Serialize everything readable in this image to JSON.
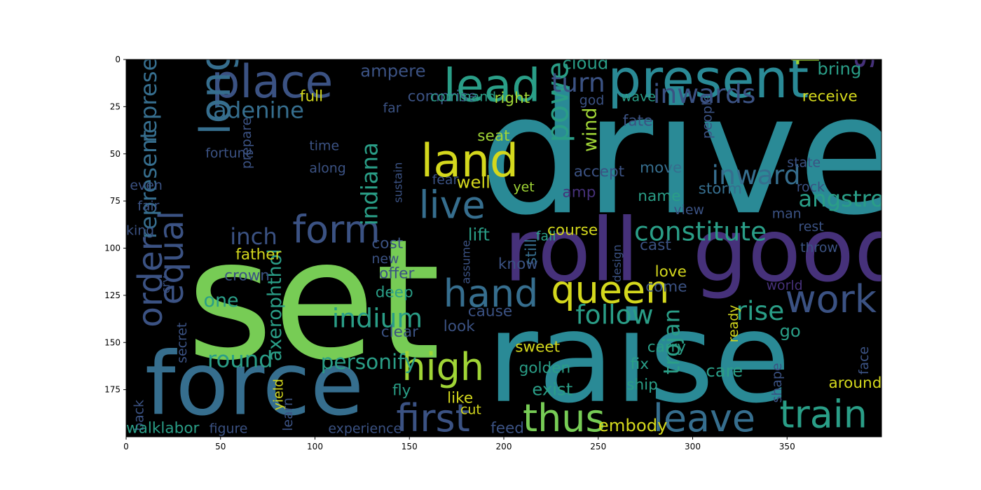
{
  "chart_data": {
    "type": "wordcloud",
    "title": "",
    "xlabel": "",
    "ylabel": "",
    "xlim": [
      0,
      400
    ],
    "ylim": [
      200,
      0
    ],
    "x_ticks": [
      0,
      50,
      100,
      150,
      200,
      250,
      300,
      350
    ],
    "y_ticks": [
      0,
      25,
      50,
      75,
      100,
      125,
      150,
      175
    ],
    "background": "#000000",
    "words": [
      {
        "text": "drive",
        "x": 187,
        "y": 81,
        "size": 88,
        "color": "#2a8a96",
        "rotate": 0
      },
      {
        "text": "set",
        "x": 32,
        "y": 158,
        "size": 88,
        "color": "#77cc55",
        "rotate": 0
      },
      {
        "text": "raise",
        "x": 191,
        "y": 181,
        "size": 66,
        "color": "#2a8a96",
        "rotate": 0
      },
      {
        "text": "roll",
        "x": 200,
        "y": 117,
        "size": 46,
        "color": "#46317a",
        "rotate": 0
      },
      {
        "text": "good",
        "x": 300,
        "y": 117,
        "size": 46,
        "color": "#46317a",
        "rotate": 0
      },
      {
        "text": "force",
        "x": 10,
        "y": 188,
        "size": 46,
        "color": "#366e8e",
        "rotate": 0
      },
      {
        "text": "pass",
        "x": 54,
        "y": 3,
        "size": 42,
        "color": "#46317a",
        "rotate": 90
      },
      {
        "text": "present",
        "x": 255,
        "y": 20,
        "size": 28,
        "color": "#2a8a96",
        "rotate": 0
      },
      {
        "text": "place",
        "x": 45,
        "y": 20,
        "size": 24,
        "color": "#3b5283",
        "rotate": 0
      },
      {
        "text": "lead",
        "x": 168,
        "y": 22,
        "size": 24,
        "color": "#2a9e87",
        "rotate": 0
      },
      {
        "text": "land",
        "x": 156,
        "y": 62,
        "size": 24,
        "color": "#d4d81d",
        "rotate": 0
      },
      {
        "text": "long",
        "x": 55,
        "y": 40,
        "size": 22,
        "color": "#366e8e",
        "rotate": 90
      },
      {
        "text": "fire",
        "x": 367,
        "y": 3,
        "size": 22,
        "color": "#a0d536",
        "rotate": 90
      },
      {
        "text": "stand",
        "x": 396,
        "y": 5,
        "size": 18,
        "color": "#46317a",
        "rotate": 90
      },
      {
        "text": "live",
        "x": 155,
        "y": 84,
        "size": 20,
        "color": "#366e8e",
        "rotate": 0
      },
      {
        "text": "form",
        "x": 88,
        "y": 97,
        "size": 20,
        "color": "#3b5283",
        "rotate": 0
      },
      {
        "text": "power",
        "x": 234,
        "y": 44,
        "size": 16,
        "color": "#2a9e87",
        "rotate": 90
      },
      {
        "text": "queen",
        "x": 225,
        "y": 129,
        "size": 20,
        "color": "#d4d81d",
        "rotate": 0
      },
      {
        "text": "hand",
        "x": 168,
        "y": 131,
        "size": 20,
        "color": "#366e8e",
        "rotate": 0
      },
      {
        "text": "work",
        "x": 349,
        "y": 134,
        "size": 20,
        "color": "#3b5283",
        "rotate": 0
      },
      {
        "text": "high",
        "x": 146,
        "y": 170,
        "size": 20,
        "color": "#a0d536",
        "rotate": 0
      },
      {
        "text": "first",
        "x": 143,
        "y": 197,
        "size": 20,
        "color": "#3b5283",
        "rotate": 0
      },
      {
        "text": "thus",
        "x": 210,
        "y": 197,
        "size": 20,
        "color": "#77cc55",
        "rotate": 0
      },
      {
        "text": "leave",
        "x": 279,
        "y": 197,
        "size": 20,
        "color": "#366e8e",
        "rotate": 0
      },
      {
        "text": "train",
        "x": 346,
        "y": 195,
        "size": 20,
        "color": "#2a9e87",
        "rotate": 0
      },
      {
        "text": "order",
        "x": 19,
        "y": 142,
        "size": 18,
        "color": "#3b5283",
        "rotate": 90
      },
      {
        "text": "equal",
        "x": 30,
        "y": 130,
        "size": 18,
        "color": "#3b5283",
        "rotate": 90
      },
      {
        "text": "inch",
        "x": 55,
        "y": 98,
        "size": 12,
        "color": "#3b5283",
        "rotate": 0
      },
      {
        "text": "represent",
        "x": 16,
        "y": 95,
        "size": 12,
        "color": "#366e8e",
        "rotate": 90
      },
      {
        "text": "represent",
        "x": 16,
        "y": 44,
        "size": 12,
        "color": "#366e8e",
        "rotate": 90
      },
      {
        "text": "adenine",
        "x": 46,
        "y": 31,
        "size": 12,
        "color": "#366e8e",
        "rotate": 0
      },
      {
        "text": "turn",
        "x": 225,
        "y": 17,
        "size": 14,
        "color": "#3b5283",
        "rotate": 0
      },
      {
        "text": "inwards",
        "x": 279,
        "y": 23,
        "size": 14,
        "color": "#3b5283",
        "rotate": 0
      },
      {
        "text": "inward",
        "x": 310,
        "y": 66,
        "size": 14,
        "color": "#366e8e",
        "rotate": 0
      },
      {
        "text": "angstrom",
        "x": 356,
        "y": 78,
        "size": 12,
        "color": "#2a9e87",
        "rotate": 0
      },
      {
        "text": "constitute",
        "x": 269,
        "y": 96,
        "size": 14,
        "color": "#2a9e87",
        "rotate": 0
      },
      {
        "text": "indiana",
        "x": 133,
        "y": 88,
        "size": 12,
        "color": "#2a9e87",
        "rotate": 90
      },
      {
        "text": "indium",
        "x": 109,
        "y": 142,
        "size": 14,
        "color": "#2a9e87",
        "rotate": 0
      },
      {
        "text": "follow",
        "x": 238,
        "y": 140,
        "size": 14,
        "color": "#2a9e87",
        "rotate": 0
      },
      {
        "text": "rise",
        "x": 323,
        "y": 138,
        "size": 14,
        "color": "#2a9e87",
        "rotate": 0
      },
      {
        "text": "axerophthol",
        "x": 82,
        "y": 160,
        "size": 10,
        "color": "#2a9e87",
        "rotate": 90
      },
      {
        "text": "round",
        "x": 43,
        "y": 163,
        "size": 12,
        "color": "#2a9e87",
        "rotate": 0
      },
      {
        "text": "personify",
        "x": 103,
        "y": 164,
        "size": 11,
        "color": "#2a9e87",
        "rotate": 0
      },
      {
        "text": "trojan",
        "x": 293,
        "y": 167,
        "size": 12,
        "color": "#2a9e87",
        "rotate": 90
      },
      {
        "text": "wind",
        "x": 249,
        "y": 49,
        "size": 10,
        "color": "#a0d536",
        "rotate": 90
      },
      {
        "text": "well",
        "x": 175,
        "y": 68,
        "size": 9,
        "color": "#d4d81d",
        "rotate": 0
      },
      {
        "text": "ampere",
        "x": 124,
        "y": 9,
        "size": 9,
        "color": "#3b5283",
        "rotate": 0
      },
      {
        "text": "cloud",
        "x": 231,
        "y": 5,
        "size": 9,
        "color": "#2a9e87",
        "rotate": 0
      },
      {
        "text": "bring",
        "x": 366,
        "y": 8,
        "size": 9,
        "color": "#2a9e87",
        "rotate": 0
      },
      {
        "text": "receive",
        "x": 358,
        "y": 22,
        "size": 8,
        "color": "#d4d81d",
        "rotate": 0
      },
      {
        "text": "comprise",
        "x": 149,
        "y": 22,
        "size": 8,
        "color": "#3b5283",
        "rotate": 0
      },
      {
        "text": "right",
        "x": 195,
        "y": 23,
        "size": 8,
        "color": "#a0d536",
        "rotate": 0
      },
      {
        "text": "command",
        "x": 161,
        "y": 22,
        "size": 7,
        "color": "#2a9e87",
        "rotate": 0
      },
      {
        "text": "god",
        "x": 240,
        "y": 24,
        "size": 7,
        "color": "#3b5283",
        "rotate": 0
      },
      {
        "text": "wave",
        "x": 262,
        "y": 22,
        "size": 7,
        "color": "#2a9e87",
        "rotate": 0
      },
      {
        "text": "full",
        "x": 92,
        "y": 22,
        "size": 8,
        "color": "#d4d81d",
        "rotate": 0
      },
      {
        "text": "far",
        "x": 136,
        "y": 28,
        "size": 7,
        "color": "#3b5283",
        "rotate": 0
      },
      {
        "text": "seat",
        "x": 186,
        "y": 43,
        "size": 8,
        "color": "#a0d536",
        "rotate": 0
      },
      {
        "text": "fate",
        "x": 263,
        "y": 35,
        "size": 8,
        "color": "#3b5283",
        "rotate": 0
      },
      {
        "text": "people",
        "x": 310,
        "y": 42,
        "size": 7,
        "color": "#3b5283",
        "rotate": 90
      },
      {
        "text": "accept",
        "x": 237,
        "y": 62,
        "size": 8,
        "color": "#3b5283",
        "rotate": 0
      },
      {
        "text": "move",
        "x": 272,
        "y": 60,
        "size": 8,
        "color": "#366e8e",
        "rotate": 0
      },
      {
        "text": "storm",
        "x": 303,
        "y": 71,
        "size": 8,
        "color": "#366e8e",
        "rotate": 0
      },
      {
        "text": "amp",
        "x": 231,
        "y": 73,
        "size": 8,
        "color": "#46317a",
        "rotate": 0
      },
      {
        "text": "name",
        "x": 271,
        "y": 75,
        "size": 8,
        "color": "#2a9e87",
        "rotate": 0
      },
      {
        "text": "state",
        "x": 350,
        "y": 57,
        "size": 7,
        "color": "#3b5283",
        "rotate": 0
      },
      {
        "text": "rock",
        "x": 355,
        "y": 70,
        "size": 7,
        "color": "#3b5283",
        "rotate": 0
      },
      {
        "text": "view",
        "x": 290,
        "y": 82,
        "size": 7,
        "color": "#3b5283",
        "rotate": 0
      },
      {
        "text": "man",
        "x": 342,
        "y": 84,
        "size": 7,
        "color": "#3b5283",
        "rotate": 0
      },
      {
        "text": "rest",
        "x": 356,
        "y": 91,
        "size": 7,
        "color": "#3b5283",
        "rotate": 0
      },
      {
        "text": "yet",
        "x": 205,
        "y": 70,
        "size": 7,
        "color": "#a0d536",
        "rotate": 0
      },
      {
        "text": "along",
        "x": 97,
        "y": 60,
        "size": 7,
        "color": "#3b5283",
        "rotate": 0
      },
      {
        "text": "time",
        "x": 97,
        "y": 48,
        "size": 7,
        "color": "#3b5283",
        "rotate": 0
      },
      {
        "text": "fortune",
        "x": 42,
        "y": 52,
        "size": 7,
        "color": "#3b5283",
        "rotate": 0
      },
      {
        "text": "prepare",
        "x": 66,
        "y": 58,
        "size": 7,
        "color": "#3b5283",
        "rotate": 90
      },
      {
        "text": "fear",
        "x": 162,
        "y": 66,
        "size": 7,
        "color": "#3b5283",
        "rotate": 0
      },
      {
        "text": "even",
        "x": 2,
        "y": 69,
        "size": 7,
        "color": "#3b5283",
        "rotate": 0
      },
      {
        "text": "fair",
        "x": 6,
        "y": 80,
        "size": 7,
        "color": "#3b5283",
        "rotate": 0
      },
      {
        "text": "king",
        "x": 0,
        "y": 93,
        "size": 7,
        "color": "#3b5283",
        "rotate": 0
      },
      {
        "text": "father",
        "x": 58,
        "y": 106,
        "size": 8,
        "color": "#d4d81d",
        "rotate": 0
      },
      {
        "text": "lift",
        "x": 181,
        "y": 96,
        "size": 9,
        "color": "#2a9e87",
        "rotate": 0
      },
      {
        "text": "cost",
        "x": 130,
        "y": 100,
        "size": 8,
        "color": "#3b5283",
        "rotate": 0
      },
      {
        "text": "new",
        "x": 130,
        "y": 108,
        "size": 7,
        "color": "#3b5283",
        "rotate": 0
      },
      {
        "text": "fall",
        "x": 217,
        "y": 96,
        "size": 7,
        "color": "#2a9e87",
        "rotate": 0
      },
      {
        "text": "course",
        "x": 223,
        "y": 93,
        "size": 8,
        "color": "#d4d81d",
        "rotate": 0
      },
      {
        "text": "cast",
        "x": 272,
        "y": 101,
        "size": 8,
        "color": "#3b5283",
        "rotate": 0
      },
      {
        "text": "love",
        "x": 280,
        "y": 115,
        "size": 8,
        "color": "#d4d81d",
        "rotate": 0
      },
      {
        "text": "throw",
        "x": 357,
        "y": 102,
        "size": 7,
        "color": "#3b5283",
        "rotate": 0
      },
      {
        "text": "still",
        "x": 217,
        "y": 109,
        "size": 8,
        "color": "#366e8e",
        "rotate": 90
      },
      {
        "text": "know",
        "x": 197,
        "y": 111,
        "size": 8,
        "color": "#3b5283",
        "rotate": 0
      },
      {
        "text": "offer",
        "x": 134,
        "y": 116,
        "size": 8,
        "color": "#3b5283",
        "rotate": 0
      },
      {
        "text": "deep",
        "x": 132,
        "y": 126,
        "size": 8,
        "color": "#2a9e87",
        "rotate": 0
      },
      {
        "text": "come",
        "x": 275,
        "y": 123,
        "size": 8,
        "color": "#3b5283",
        "rotate": 0
      },
      {
        "text": "one",
        "x": 41,
        "y": 131,
        "size": 10,
        "color": "#2a9e87",
        "rotate": 0
      },
      {
        "text": "crown",
        "x": 52,
        "y": 117,
        "size": 8,
        "color": "#3b5283",
        "rotate": 0
      },
      {
        "text": "look",
        "x": 168,
        "y": 144,
        "size": 8,
        "color": "#3b5283",
        "rotate": 0
      },
      {
        "text": "clear",
        "x": 135,
        "y": 147,
        "size": 8,
        "color": "#3b5283",
        "rotate": 0
      },
      {
        "text": "cause",
        "x": 181,
        "y": 136,
        "size": 8,
        "color": "#3b5283",
        "rotate": 0
      },
      {
        "text": "go",
        "x": 346,
        "y": 147,
        "size": 9,
        "color": "#2a9e87",
        "rotate": 0
      },
      {
        "text": "ready",
        "x": 324,
        "y": 150,
        "size": 7,
        "color": "#d4d81d",
        "rotate": 90
      },
      {
        "text": "sweet",
        "x": 206,
        "y": 155,
        "size": 8,
        "color": "#d4d81d",
        "rotate": 0
      },
      {
        "text": "carry",
        "x": 276,
        "y": 155,
        "size": 8,
        "color": "#2a9e87",
        "rotate": 0
      },
      {
        "text": "golden",
        "x": 208,
        "y": 166,
        "size": 8,
        "color": "#2a9e87",
        "rotate": 0
      },
      {
        "text": "fix",
        "x": 267,
        "y": 164,
        "size": 8,
        "color": "#2a9e87",
        "rotate": 0
      },
      {
        "text": "care",
        "x": 307,
        "y": 168,
        "size": 9,
        "color": "#2a9e87",
        "rotate": 0
      },
      {
        "text": "ship",
        "x": 265,
        "y": 175,
        "size": 8,
        "color": "#2a9e87",
        "rotate": 0
      },
      {
        "text": "exist",
        "x": 215,
        "y": 178,
        "size": 9,
        "color": "#2a9e87",
        "rotate": 0
      },
      {
        "text": "around",
        "x": 372,
        "y": 174,
        "size": 8,
        "color": "#d4d81d",
        "rotate": 0
      },
      {
        "text": "like",
        "x": 170,
        "y": 182,
        "size": 8,
        "color": "#d4d81d",
        "rotate": 0
      },
      {
        "text": "cut",
        "x": 177,
        "y": 188,
        "size": 7,
        "color": "#d4d81d",
        "rotate": 0
      },
      {
        "text": "fly",
        "x": 141,
        "y": 178,
        "size": 8,
        "color": "#2a9e87",
        "rotate": 0
      },
      {
        "text": "yield",
        "x": 83,
        "y": 186,
        "size": 7,
        "color": "#d4d81d",
        "rotate": 90
      },
      {
        "text": "learn",
        "x": 88,
        "y": 197,
        "size": 7,
        "color": "#3b5283",
        "rotate": 90
      },
      {
        "text": "secret",
        "x": 32,
        "y": 161,
        "size": 7,
        "color": "#3b5283",
        "rotate": 90
      },
      {
        "text": "back",
        "x": 9,
        "y": 197,
        "size": 7,
        "color": "#3b5283",
        "rotate": 90
      },
      {
        "text": "walklabor",
        "x": 0,
        "y": 198,
        "size": 8,
        "color": "#2a9e87",
        "rotate": 0
      },
      {
        "text": "figure",
        "x": 44,
        "y": 198,
        "size": 7,
        "color": "#3b5283",
        "rotate": 0
      },
      {
        "text": "experience",
        "x": 107,
        "y": 198,
        "size": 7,
        "color": "#3b5283",
        "rotate": 0
      },
      {
        "text": "feed",
        "x": 193,
        "y": 198,
        "size": 8,
        "color": "#3b5283",
        "rotate": 0
      },
      {
        "text": "embody",
        "x": 250,
        "y": 197,
        "size": 9,
        "color": "#d4d81d",
        "rotate": 0
      },
      {
        "text": "shape",
        "x": 347,
        "y": 182,
        "size": 7,
        "color": "#3b5283",
        "rotate": 90
      },
      {
        "text": "face",
        "x": 393,
        "y": 167,
        "size": 7,
        "color": "#3b5283",
        "rotate": 90
      },
      {
        "text": "world",
        "x": 339,
        "y": 122,
        "size": 7,
        "color": "#46317a",
        "rotate": 0
      },
      {
        "text": "design",
        "x": 262,
        "y": 118,
        "size": 6,
        "color": "#3b5283",
        "rotate": 90
      },
      {
        "text": "assume",
        "x": 182,
        "y": 119,
        "size": 6,
        "color": "#3b5283",
        "rotate": 90
      },
      {
        "text": "cry",
        "x": 23,
        "y": 124,
        "size": 6,
        "color": "#3b5283",
        "rotate": 90
      },
      {
        "text": "sustain",
        "x": 146,
        "y": 76,
        "size": 6,
        "color": "#3b5283",
        "rotate": 90
      }
    ]
  }
}
